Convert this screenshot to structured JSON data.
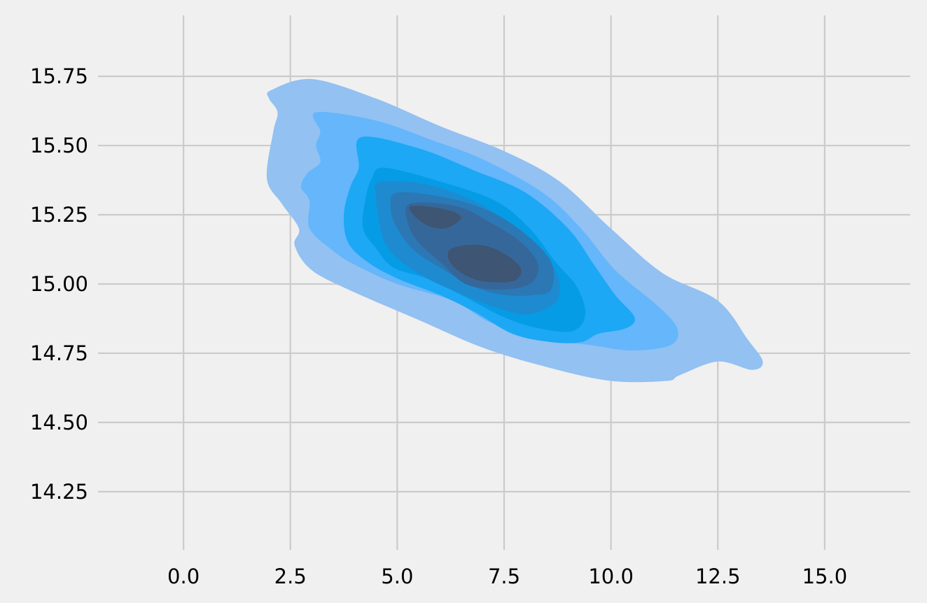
{
  "chart_data": {
    "type": "kde_contour_filled",
    "title": "",
    "xlabel": "",
    "ylabel": "",
    "xlim": [
      -2.0,
      17.0
    ],
    "ylim": [
      14.04,
      15.97
    ],
    "x_ticks": [
      0.0,
      2.5,
      5.0,
      7.5,
      10.0,
      12.5,
      15.0
    ],
    "x_tick_labels": [
      "0.0",
      "2.5",
      "5.0",
      "7.5",
      "10.0",
      "12.5",
      "15.0"
    ],
    "y_ticks": [
      14.25,
      14.5,
      14.75,
      15.0,
      15.25,
      15.5,
      15.75
    ],
    "y_tick_labels": [
      "14.25",
      "14.50",
      "14.75",
      "15.00",
      "15.25",
      "15.50",
      "15.75"
    ],
    "grid": true,
    "legend": "none",
    "density_peaks": [
      {
        "x": 7.0,
        "y": 15.07
      },
      {
        "x": 5.9,
        "y": 15.25
      }
    ],
    "levels": [
      {
        "level": 1,
        "color": "#92c1f2",
        "outline": [
          [
            2.05,
            15.7
          ],
          [
            3.0,
            15.74
          ],
          [
            4.5,
            15.67
          ],
          [
            6.0,
            15.57
          ],
          [
            7.5,
            15.48
          ],
          [
            8.8,
            15.37
          ],
          [
            10.0,
            15.2
          ],
          [
            11.2,
            15.04
          ],
          [
            12.5,
            14.94
          ],
          [
            13.2,
            14.8
          ],
          [
            13.55,
            14.72
          ],
          [
            13.3,
            14.69
          ],
          [
            12.5,
            14.72
          ],
          [
            11.6,
            14.67
          ],
          [
            11.3,
            14.65
          ],
          [
            10.0,
            14.65
          ],
          [
            8.5,
            14.7
          ],
          [
            7.0,
            14.77
          ],
          [
            5.5,
            14.87
          ],
          [
            4.0,
            14.97
          ],
          [
            3.0,
            15.05
          ],
          [
            2.6,
            15.14
          ],
          [
            2.7,
            15.2
          ],
          [
            2.3,
            15.29
          ],
          [
            1.95,
            15.38
          ],
          [
            2.1,
            15.55
          ],
          [
            2.2,
            15.62
          ],
          [
            2.0,
            15.67
          ]
        ]
      },
      {
        "level": 2,
        "color": "#65b6fb",
        "outline": [
          [
            3.1,
            15.62
          ],
          [
            4.5,
            15.59
          ],
          [
            5.8,
            15.52
          ],
          [
            7.0,
            15.45
          ],
          [
            8.4,
            15.33
          ],
          [
            9.3,
            15.2
          ],
          [
            10.1,
            15.05
          ],
          [
            11.1,
            14.92
          ],
          [
            11.55,
            14.84
          ],
          [
            11.4,
            14.78
          ],
          [
            10.5,
            14.76
          ],
          [
            9.5,
            14.78
          ],
          [
            8.5,
            14.8
          ],
          [
            7.2,
            14.86
          ],
          [
            6.3,
            14.94
          ],
          [
            5.0,
            15.0
          ],
          [
            4.0,
            15.07
          ],
          [
            3.5,
            15.12
          ],
          [
            2.95,
            15.2
          ],
          [
            2.95,
            15.3
          ],
          [
            2.75,
            15.35
          ],
          [
            2.9,
            15.4
          ],
          [
            3.2,
            15.44
          ],
          [
            3.1,
            15.5
          ],
          [
            3.2,
            15.55
          ]
        ]
      },
      {
        "level": 3,
        "color": "#1ca8f4",
        "outline": [
          [
            4.15,
            15.53
          ],
          [
            5.5,
            15.49
          ],
          [
            6.8,
            15.41
          ],
          [
            8.0,
            15.33
          ],
          [
            9.0,
            15.2
          ],
          [
            9.6,
            15.07
          ],
          [
            10.1,
            14.96
          ],
          [
            10.55,
            14.88
          ],
          [
            10.35,
            14.84
          ],
          [
            9.7,
            14.82
          ],
          [
            9.3,
            14.79
          ],
          [
            8.6,
            14.79
          ],
          [
            7.7,
            14.82
          ],
          [
            6.8,
            14.9
          ],
          [
            6.0,
            14.96
          ],
          [
            5.0,
            15.02
          ],
          [
            4.3,
            15.08
          ],
          [
            3.85,
            15.15
          ],
          [
            3.75,
            15.25
          ],
          [
            3.9,
            15.35
          ],
          [
            4.1,
            15.42
          ]
        ]
      },
      {
        "level": 4,
        "color": "#059ce5",
        "outline": [
          [
            4.7,
            15.42
          ],
          [
            6.0,
            15.37
          ],
          [
            7.3,
            15.3
          ],
          [
            8.1,
            15.2
          ],
          [
            8.7,
            15.08
          ],
          [
            9.2,
            14.99
          ],
          [
            9.4,
            14.89
          ],
          [
            9.1,
            14.83
          ],
          [
            8.3,
            14.84
          ],
          [
            7.5,
            14.88
          ],
          [
            6.5,
            14.96
          ],
          [
            5.7,
            15.02
          ],
          [
            4.9,
            15.06
          ],
          [
            4.5,
            15.13
          ],
          [
            4.2,
            15.2
          ],
          [
            4.25,
            15.3
          ],
          [
            4.4,
            15.38
          ]
        ]
      },
      {
        "level": 5,
        "color": "#1e8bd1",
        "outline": [
          [
            4.6,
            15.37
          ],
          [
            5.7,
            15.36
          ],
          [
            6.8,
            15.3
          ],
          [
            7.6,
            15.22
          ],
          [
            8.2,
            15.13
          ],
          [
            8.7,
            15.05
          ],
          [
            8.8,
            14.97
          ],
          [
            8.6,
            14.92
          ],
          [
            8.0,
            14.89
          ],
          [
            7.2,
            14.92
          ],
          [
            6.4,
            14.97
          ],
          [
            5.7,
            15.02
          ],
          [
            5.1,
            15.08
          ],
          [
            4.7,
            15.15
          ],
          [
            4.55,
            15.25
          ],
          [
            4.5,
            15.32
          ]
        ]
      },
      {
        "level": 6,
        "color": "#2b78b5",
        "outline": [
          [
            5.0,
            15.33
          ],
          [
            6.2,
            15.31
          ],
          [
            7.2,
            15.26
          ],
          [
            8.0,
            15.18
          ],
          [
            8.6,
            15.08
          ],
          [
            8.6,
            14.98
          ],
          [
            8.2,
            14.96
          ],
          [
            7.5,
            14.96
          ],
          [
            6.8,
            14.99
          ],
          [
            6.1,
            15.05
          ],
          [
            5.4,
            15.12
          ],
          [
            5.0,
            15.2
          ],
          [
            4.85,
            15.27
          ]
        ]
      },
      {
        "level": 7,
        "color": "#36679a",
        "outline": [
          [
            5.3,
            15.29
          ],
          [
            6.4,
            15.28
          ],
          [
            7.2,
            15.22
          ],
          [
            7.9,
            15.15
          ],
          [
            8.3,
            15.07
          ],
          [
            8.1,
            15.0
          ],
          [
            7.4,
            14.98
          ],
          [
            6.6,
            15.0
          ],
          [
            6.0,
            15.08
          ],
          [
            5.5,
            15.15
          ],
          [
            5.25,
            15.22
          ]
        ]
      },
      {
        "level": 8,
        "color": "#3e5573",
        "outline": [
          [
            5.3,
            15.28
          ],
          [
            6.1,
            15.27
          ],
          [
            6.5,
            15.24
          ],
          [
            6.1,
            15.2
          ],
          [
            5.6,
            15.22
          ]
        ],
        "outline2": [
          [
            6.3,
            15.13
          ],
          [
            7.0,
            15.14
          ],
          [
            7.6,
            15.1
          ],
          [
            7.9,
            15.05
          ],
          [
            7.7,
            15.01
          ],
          [
            7.0,
            15.01
          ],
          [
            6.5,
            15.04
          ],
          [
            6.2,
            15.09
          ]
        ]
      }
    ]
  }
}
